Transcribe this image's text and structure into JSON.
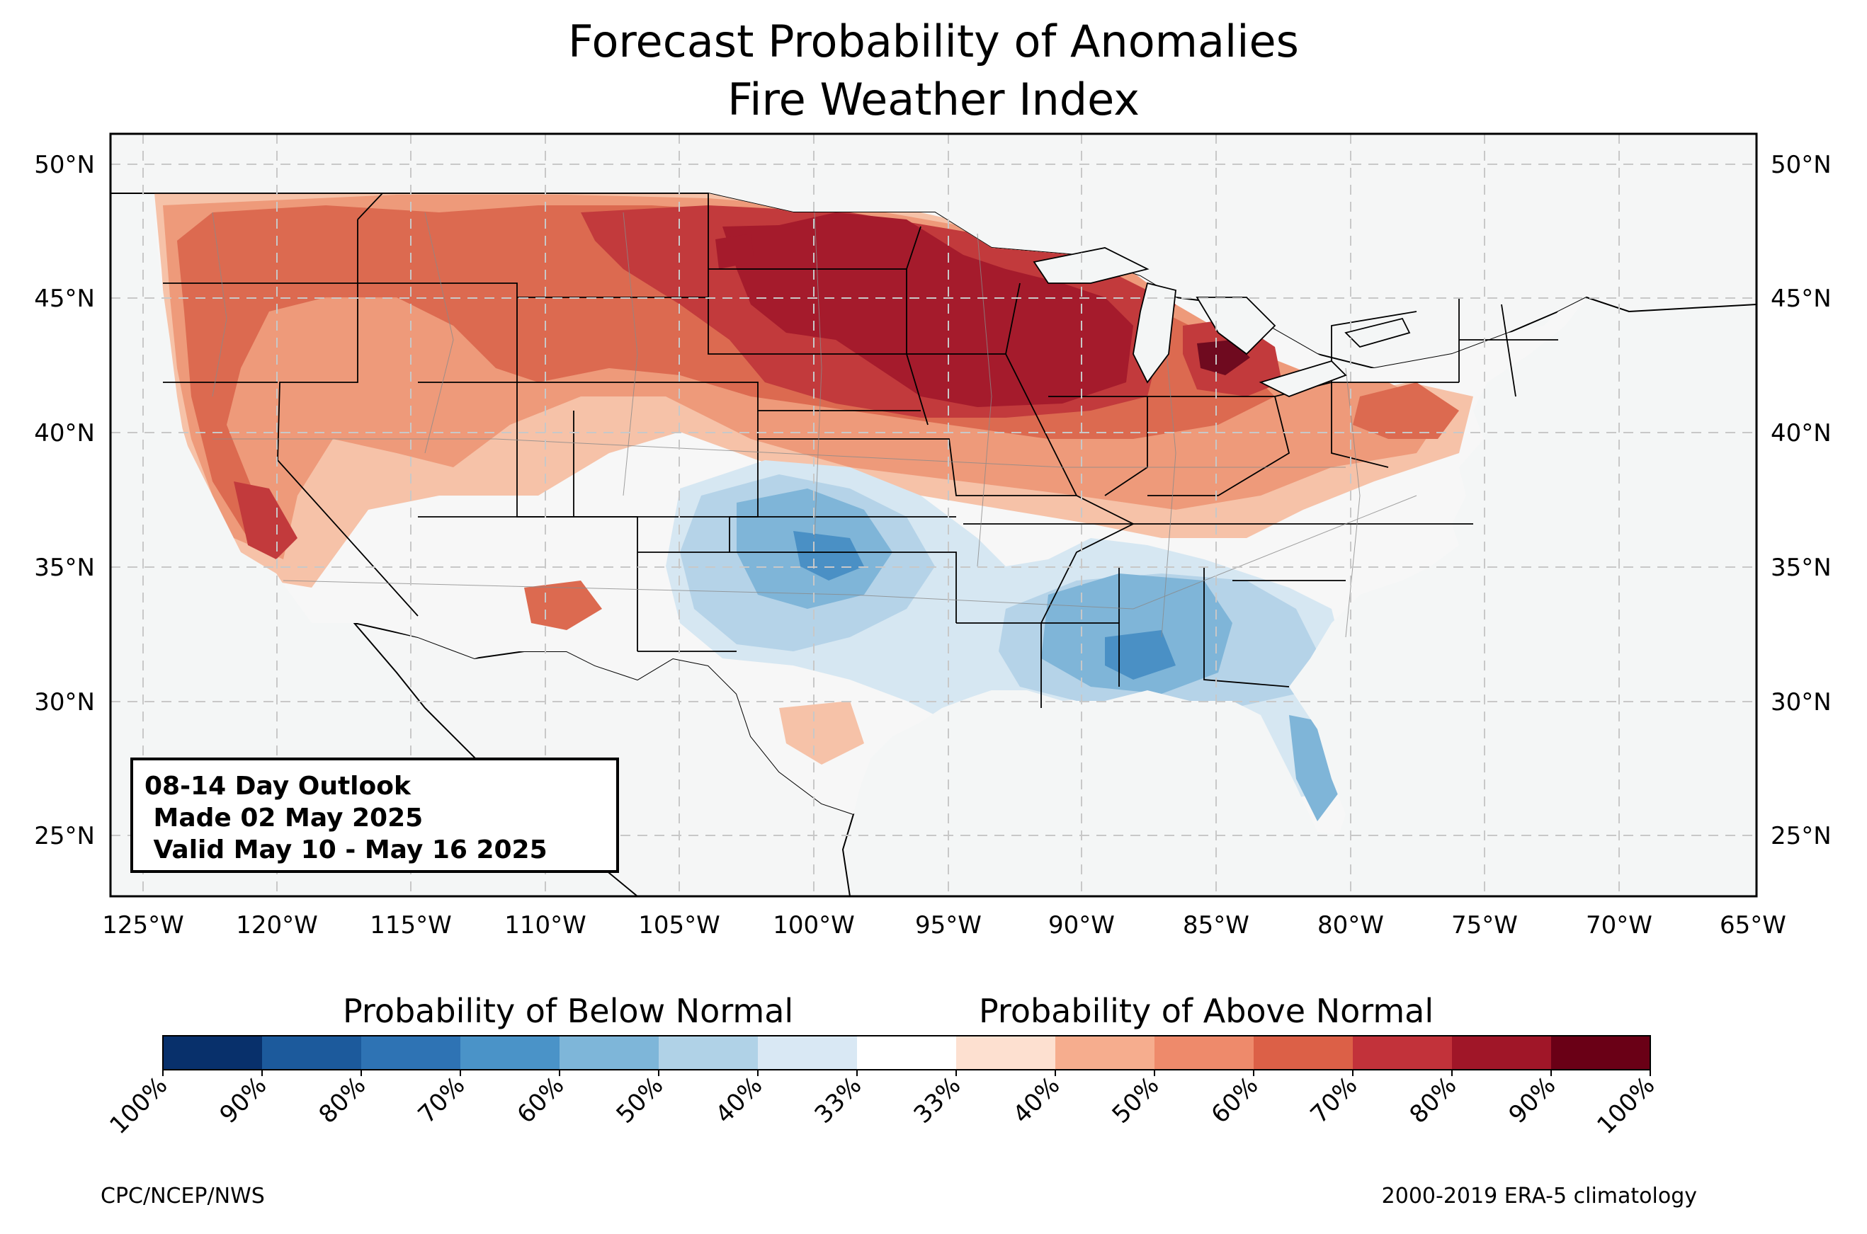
{
  "title_line1": "Forecast Probability of Anomalies",
  "title_line2": "Fire Weather Index",
  "outlook_box": {
    "line1": "08-14 Day Outlook",
    "line2": " Made 02 May 2025",
    "line3": " Valid May 10 - May 16 2025"
  },
  "axes": {
    "lat_labels": [
      "50°N",
      "45°N",
      "40°N",
      "35°N",
      "30°N",
      "25°N"
    ],
    "lon_labels": [
      "125°W",
      "120°W",
      "115°W",
      "110°W",
      "105°W",
      "100°W",
      "95°W",
      "90°W",
      "85°W",
      "80°W",
      "75°W",
      "70°W",
      "65°W"
    ]
  },
  "legend": {
    "below_title": "Probability of Below Normal",
    "above_title": "Probability of Above Normal",
    "labels": [
      "100%",
      "90%",
      "80%",
      "70%",
      "60%",
      "50%",
      "40%",
      "33%",
      "33%",
      "40%",
      "50%",
      "60%",
      "70%",
      "80%",
      "90%",
      "100%"
    ],
    "colors": [
      "#08306b",
      "#1c5a9c",
      "#2e73b4",
      "#4a93c8",
      "#7eb6d9",
      "#b0d2e7",
      "#d9e8f4",
      "#ffffff",
      "#fde0d0",
      "#f6ad8e",
      "#ee8a6b",
      "#dc6047",
      "#c2323a",
      "#a01628",
      "#6a0016"
    ]
  },
  "footer_left": "CPC/NCEP/NWS",
  "footer_right": "2000-2019 ERA-5 climatology",
  "map_colors": {
    "ocean": "#f4f6f6",
    "land_neutral": "#f7f7f7",
    "above_40": "#f6c2a8",
    "above_50": "#ee9a7a",
    "above_60": "#dc6a50",
    "above_70": "#c23a3c",
    "above_80": "#a51b2c",
    "above_90": "#6f0a1f",
    "below_40": "#d6e7f2",
    "below_50": "#b5d3e8",
    "below_60": "#7fb5d8",
    "below_70": "#4a90c5"
  }
}
